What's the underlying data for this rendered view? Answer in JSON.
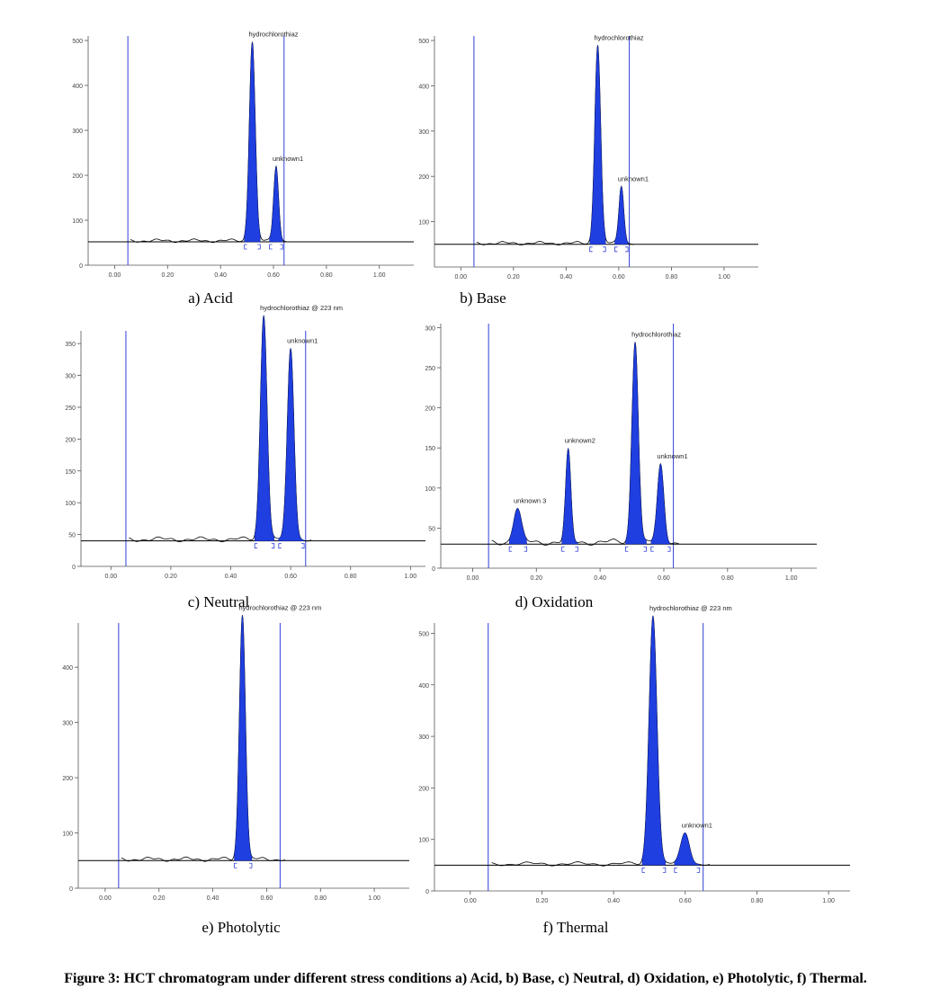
{
  "figure_caption": "Figure 3: HCT chromatogram under different stress conditions a) Acid, b) Base, c) Neutral, d) Oxidation, e) Photolytic, f) Thermal.",
  "colors": {
    "peak_fill": "#1f3fe0",
    "marker_line": "#3040d8",
    "baseline": "#000000",
    "trace": "#000000"
  },
  "chart_data": [
    {
      "type": "area",
      "caption": "a) Acid",
      "xlim": [
        -0.1,
        1.13
      ],
      "ylim": [
        0,
        510
      ],
      "x_ticks": [
        {
          "v": 0.0,
          "label": "0.00"
        },
        {
          "v": 0.2,
          "label": "0.20"
        },
        {
          "v": 0.4,
          "label": "0.40"
        },
        {
          "v": 0.6,
          "label": "0.60"
        },
        {
          "v": 0.8,
          "label": "0.80"
        },
        {
          "v": 1.0,
          "label": "1.00"
        }
      ],
      "y_ticks": [
        {
          "v": 0,
          "label": "0"
        },
        {
          "v": 100,
          "label": "100"
        },
        {
          "v": 200,
          "label": "200"
        },
        {
          "v": 300,
          "label": "300"
        },
        {
          "v": 400,
          "label": "400"
        },
        {
          "v": 500,
          "label": "500"
        }
      ],
      "baseline": 52,
      "markers": [
        0.05,
        0.64
      ],
      "peaks": [
        {
          "label": "hydrochlorothiaz",
          "rt": 0.52,
          "height": 445,
          "sigma": 0.011,
          "start": 0.49,
          "end": 0.55
        },
        {
          "label": "unknown1",
          "rt": 0.61,
          "height": 168,
          "sigma": 0.009,
          "start": 0.585,
          "end": 0.635
        }
      ]
    },
    {
      "type": "area",
      "caption": "b) Base",
      "xlim": [
        -0.1,
        1.13
      ],
      "ylim": [
        0,
        510
      ],
      "x_ticks": [
        {
          "v": 0.0,
          "label": "0.00"
        },
        {
          "v": 0.2,
          "label": "0.20"
        },
        {
          "v": 0.4,
          "label": "0.40"
        },
        {
          "v": 0.6,
          "label": "0.60"
        },
        {
          "v": 0.8,
          "label": "0.80"
        },
        {
          "v": 1.0,
          "label": "1.00"
        }
      ],
      "y_ticks": [
        {
          "v": 100,
          "label": "100"
        },
        {
          "v": 200,
          "label": "200"
        },
        {
          "v": 300,
          "label": "300"
        },
        {
          "v": 400,
          "label": "400"
        },
        {
          "v": 500,
          "label": "500"
        }
      ],
      "baseline": 50,
      "markers": [
        0.05,
        0.64
      ],
      "peaks": [
        {
          "label": "hydrochlorothiaz",
          "rt": 0.52,
          "height": 440,
          "sigma": 0.011,
          "start": 0.49,
          "end": 0.55
        },
        {
          "label": "unknown1",
          "rt": 0.61,
          "height": 128,
          "sigma": 0.009,
          "start": 0.585,
          "end": 0.635
        }
      ]
    },
    {
      "type": "area",
      "caption": "c) Neutral",
      "xlim": [
        -0.1,
        1.05
      ],
      "ylim": [
        0,
        370
      ],
      "x_ticks": [
        {
          "v": 0.0,
          "label": "0.00"
        },
        {
          "v": 0.2,
          "label": "0.20"
        },
        {
          "v": 0.4,
          "label": "0.40"
        },
        {
          "v": 0.6,
          "label": "0.60"
        },
        {
          "v": 0.8,
          "label": "0.80"
        },
        {
          "v": 1.0,
          "label": "1.00"
        }
      ],
      "y_ticks": [
        {
          "v": 0,
          "label": "0"
        },
        {
          "v": 50,
          "label": "50"
        },
        {
          "v": 100,
          "label": "100"
        },
        {
          "v": 150,
          "label": "150"
        },
        {
          "v": 200,
          "label": "200"
        },
        {
          "v": 250,
          "label": "250"
        },
        {
          "v": 300,
          "label": "300"
        },
        {
          "v": 350,
          "label": "350"
        }
      ],
      "baseline": 40,
      "markers": [
        0.05,
        0.65
      ],
      "peaks": [
        {
          "label": "hydrochlorothiaz @ 223 nm",
          "rt": 0.51,
          "height": 355,
          "sigma": 0.011,
          "start": 0.48,
          "end": 0.545
        },
        {
          "label": "unknown1",
          "rt": 0.6,
          "height": 300,
          "sigma": 0.011,
          "start": 0.56,
          "end": 0.645
        }
      ]
    },
    {
      "type": "area",
      "caption": "d) Oxidation",
      "xlim": [
        -0.1,
        1.08
      ],
      "ylim": [
        0,
        305
      ],
      "x_ticks": [
        {
          "v": 0.0,
          "label": "0.00"
        },
        {
          "v": 0.2,
          "label": "0.20"
        },
        {
          "v": 0.4,
          "label": "0.40"
        },
        {
          "v": 0.6,
          "label": "0.60"
        },
        {
          "v": 0.8,
          "label": "0.80"
        },
        {
          "v": 1.0,
          "label": "1.00"
        }
      ],
      "y_ticks": [
        {
          "v": 0,
          "label": "0"
        },
        {
          "v": 50,
          "label": "50"
        },
        {
          "v": 100,
          "label": "100"
        },
        {
          "v": 150,
          "label": "150"
        },
        {
          "v": 200,
          "label": "200"
        },
        {
          "v": 250,
          "label": "250"
        },
        {
          "v": 300,
          "label": "300"
        }
      ],
      "baseline": 30,
      "markers": [
        0.05,
        0.63
      ],
      "peaks": [
        {
          "label": "unknown 3",
          "rt": 0.14,
          "height": 42,
          "sigma": 0.012,
          "start": 0.115,
          "end": 0.17
        },
        {
          "label": "unknown2",
          "rt": 0.3,
          "height": 113,
          "sigma": 0.008,
          "start": 0.28,
          "end": 0.33
        },
        {
          "label": "hydrochlorothiaz",
          "rt": 0.51,
          "height": 253,
          "sigma": 0.01,
          "start": 0.48,
          "end": 0.545
        },
        {
          "label": "unknown1",
          "rt": 0.59,
          "height": 95,
          "sigma": 0.01,
          "start": 0.56,
          "end": 0.62
        }
      ]
    },
    {
      "type": "area",
      "caption": "e) Photolytic",
      "xlim": [
        -0.1,
        1.13
      ],
      "ylim": [
        0,
        480
      ],
      "x_ticks": [
        {
          "v": 0.0,
          "label": "0.00"
        },
        {
          "v": 0.2,
          "label": "0.20"
        },
        {
          "v": 0.4,
          "label": "0.40"
        },
        {
          "v": 0.6,
          "label": "0.60"
        },
        {
          "v": 0.8,
          "label": "0.80"
        },
        {
          "v": 1.0,
          "label": "1.00"
        }
      ],
      "y_ticks": [
        {
          "v": 0,
          "label": "0"
        },
        {
          "v": 100,
          "label": "100"
        },
        {
          "v": 200,
          "label": "200"
        },
        {
          "v": 300,
          "label": "300"
        },
        {
          "v": 400,
          "label": "400"
        }
      ],
      "baseline": 50,
      "markers": [
        0.05,
        0.65
      ],
      "peaks": [
        {
          "label": "hydrochlorothiaz @ 223 nm",
          "rt": 0.51,
          "height": 445,
          "sigma": 0.011,
          "start": 0.48,
          "end": 0.545
        }
      ]
    },
    {
      "type": "area",
      "caption": "f) Thermal",
      "xlim": [
        -0.1,
        1.06
      ],
      "ylim": [
        0,
        520
      ],
      "x_ticks": [
        {
          "v": 0.0,
          "label": "0.00"
        },
        {
          "v": 0.2,
          "label": "0.20"
        },
        {
          "v": 0.4,
          "label": "0.40"
        },
        {
          "v": 0.6,
          "label": "0.60"
        },
        {
          "v": 0.8,
          "label": "0.80"
        },
        {
          "v": 1.0,
          "label": "1.00"
        }
      ],
      "y_ticks": [
        {
          "v": 0,
          "label": "0"
        },
        {
          "v": 100,
          "label": "100"
        },
        {
          "v": 200,
          "label": "200"
        },
        {
          "v": 300,
          "label": "300"
        },
        {
          "v": 400,
          "label": "400"
        },
        {
          "v": 500,
          "label": "500"
        }
      ],
      "baseline": 50,
      "markers": [
        0.05,
        0.65
      ],
      "peaks": [
        {
          "label": "hydrochlorothiaz @ 223 nm",
          "rt": 0.51,
          "height": 485,
          "sigma": 0.011,
          "start": 0.48,
          "end": 0.545
        },
        {
          "label": "unknown1",
          "rt": 0.6,
          "height": 60,
          "sigma": 0.012,
          "start": 0.57,
          "end": 0.64
        }
      ]
    }
  ]
}
